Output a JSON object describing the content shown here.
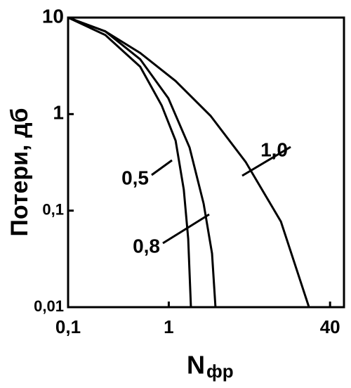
{
  "chart_data": {
    "type": "line",
    "log_x": true,
    "log_y": true,
    "y_label": "Потери, дб",
    "x_label": "N",
    "x_label_sub": "фр",
    "xlim": [
      0.1,
      55
    ],
    "ylim": [
      0.01,
      10
    ],
    "xticks": [
      {
        "value": 0.1,
        "label": "0,1"
      },
      1,
      40
    ],
    "yticks": [
      10,
      1,
      {
        "value": 0.1,
        "label": "0,1"
      },
      {
        "value": 0.01,
        "label": "0,01"
      }
    ],
    "series": [
      {
        "name": "0,5",
        "color": "#000000",
        "x": [
          0.1,
          0.234,
          0.52,
          0.85,
          1.17,
          1.41,
          1.56,
          1.66
        ],
        "values": [
          10,
          6.6,
          3.1,
          1.23,
          0.53,
          0.165,
          0.051,
          0.01
        ]
      },
      {
        "name": "0,8",
        "color": "#000000",
        "x": [
          0.1,
          0.234,
          0.52,
          0.99,
          1.61,
          2.22,
          2.69,
          2.91
        ],
        "values": [
          10,
          7.2,
          3.7,
          1.46,
          0.45,
          0.118,
          0.036,
          0.01
        ]
      },
      {
        "name": "1,0",
        "color": "#000000",
        "x": [
          0.1,
          0.234,
          0.52,
          1.17,
          2.6,
          5.8,
          13,
          24.7
        ],
        "values": [
          10,
          7.2,
          4.3,
          2.2,
          0.96,
          0.32,
          0.077,
          0.01
        ]
      }
    ]
  }
}
